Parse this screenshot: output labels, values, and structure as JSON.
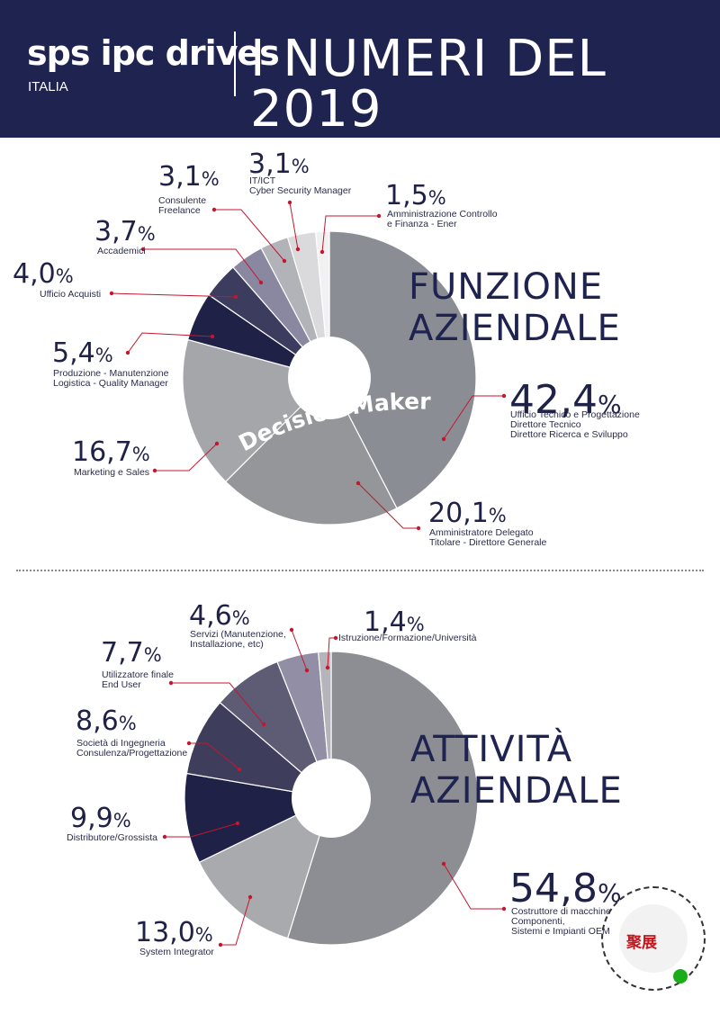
{
  "header": {
    "brand": "sps ipc drives",
    "brand_sub": "ITALIA",
    "headline": "I NUMERI DEL 2019"
  },
  "colors": {
    "header_bg": "#1f2350",
    "accent_line": "#c4162e"
  },
  "chart_data": [
    {
      "type": "pie",
      "title": "FUNZIONE\nAZIENDALE",
      "center_text": "Decision Maker",
      "slices": [
        {
          "value": 42.4,
          "value_text": "42,4",
          "label": "Ufficio Tecnico e Progettazione\nDirettore Tecnico\nDirettore Ricerca e Sviluppo",
          "color": "#8b8d94"
        },
        {
          "value": 20.1,
          "value_text": "20,1",
          "label": "Amministratore Delegato\nTitolare - Direttore Generale",
          "color": "#949699"
        },
        {
          "value": 16.7,
          "value_text": "16,7",
          "label": "Marketing e Sales",
          "color": "#a4a6aa"
        },
        {
          "value": 5.4,
          "value_text": "5,4",
          "label": "Produzione - Manutenzione\nLogistica - Quality Manager",
          "color": "#1f2147"
        },
        {
          "value": 4.0,
          "value_text": "4,0",
          "label": "Ufficio Acquisti",
          "color": "#3c3d5e"
        },
        {
          "value": 3.7,
          "value_text": "3,7",
          "label": "Accademici",
          "color": "#8a88a0"
        },
        {
          "value": 3.1,
          "value_text": "3,1",
          "label": "Consulente\nFreelance",
          "color": "#b2b2b9"
        },
        {
          "value": 3.1,
          "value_text": "3,1",
          "label": "IT/ICT\nCyber Security Manager",
          "color": "#dadadd"
        },
        {
          "value": 1.5,
          "value_text": "1,5",
          "label": "Amministrazione Controllo\ne Finanza - Ener",
          "color": "#f1f1f2"
        }
      ]
    },
    {
      "type": "pie",
      "title": "ATTIVITÀ\nAZIENDALE",
      "slices": [
        {
          "value": 54.8,
          "value_text": "54,8",
          "label": "Costruttore di macchine\nComponenti,\nSistemi e Impianti OEM",
          "color": "#8c8e94"
        },
        {
          "value": 13.0,
          "value_text": "13,0",
          "label": "System Integrator",
          "color": "#a8aaae"
        },
        {
          "value": 9.9,
          "value_text": "9,9",
          "label": "Distributore/Grossista",
          "color": "#1f2147"
        },
        {
          "value": 8.6,
          "value_text": "8,6",
          "label": "Società di Ingegneria\nConsulenza/Progettazione",
          "color": "#3f3d5c"
        },
        {
          "value": 7.7,
          "value_text": "7,7",
          "label": "Utilizzatore finale\nEnd User",
          "color": "#5e5b75"
        },
        {
          "value": 4.6,
          "value_text": "4,6",
          "label": "Servizi (Manutenzione,\nInstallazione, etc)",
          "color": "#918ea6"
        },
        {
          "value": 1.4,
          "value_text": "1,4",
          "label": "Istruzione/Formazione/Università",
          "color": "#b4b4ba"
        }
      ]
    }
  ],
  "percent_symbol": "%",
  "watermark": {
    "text": "聚展"
  }
}
